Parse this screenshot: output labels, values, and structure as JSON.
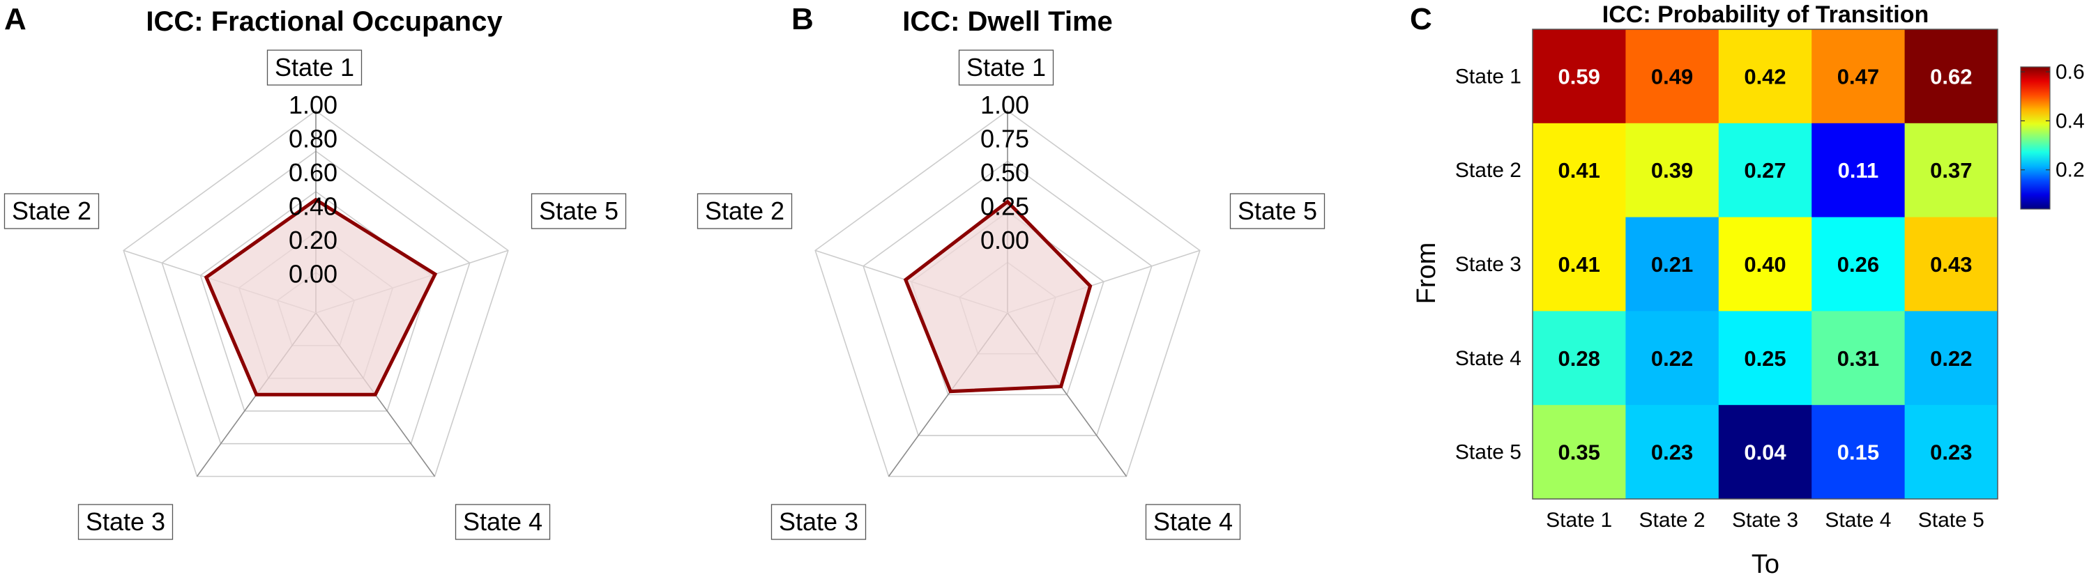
{
  "colors": {
    "polygon_stroke": "#8b0000",
    "polygon_fill": "#f0d8d8",
    "grid_light": "#cccccc",
    "grid_dark": "#8c8c8c",
    "colormap": "jet"
  },
  "chart_data": [
    {
      "type": "radar",
      "panel_letter": "A",
      "title": "ICC: Fractional Occupancy",
      "axes": [
        "State 1",
        "State 5",
        "State 4",
        "State 3",
        "State 2"
      ],
      "rlim": [
        0,
        1
      ],
      "tick_labels": [
        "1.00",
        "0.80",
        "0.60",
        "0.40",
        "0.20",
        "0.00"
      ],
      "values": [
        0.56,
        0.62,
        0.5,
        0.5,
        0.57
      ],
      "grid": true
    },
    {
      "type": "radar",
      "panel_letter": "B",
      "title": "ICC: Dwell Time",
      "axes": [
        "State 1",
        "State 5",
        "State 4",
        "State 3",
        "State 2"
      ],
      "rlim": [
        0,
        1
      ],
      "tick_labels": [
        "1.00",
        "0.75",
        "0.50",
        "0.25",
        "0.00"
      ],
      "values": [
        0.55,
        0.43,
        0.45,
        0.48,
        0.53
      ],
      "grid": true
    },
    {
      "type": "heatmap",
      "panel_letter": "C",
      "title": "ICC: Probability of Transition",
      "xlabel": "To",
      "ylabel": "From",
      "row_labels": [
        "State 1",
        "State 2",
        "State 3",
        "State 4",
        "State 5"
      ],
      "col_labels": [
        "State 1",
        "State 2",
        "State 3",
        "State 4",
        "State 5"
      ],
      "values": [
        [
          0.59,
          0.49,
          0.42,
          0.47,
          0.62
        ],
        [
          0.41,
          0.39,
          0.27,
          0.11,
          0.37
        ],
        [
          0.41,
          0.21,
          0.4,
          0.26,
          0.43
        ],
        [
          0.28,
          0.22,
          0.25,
          0.31,
          0.22
        ],
        [
          0.35,
          0.23,
          0.04,
          0.15,
          0.23
        ]
      ],
      "cell_labels": [
        [
          "0.59",
          "0.49",
          "0.42",
          "0.47",
          "0.62"
        ],
        [
          "0.41",
          "0.39",
          "0.27",
          "0.11",
          "0.37"
        ],
        [
          "0.41",
          "0.21",
          "0.40",
          "0.26",
          "0.43"
        ],
        [
          "0.28",
          "0.22",
          "0.25",
          "0.31",
          "0.22"
        ],
        [
          "0.35",
          "0.23",
          "0.04",
          "0.15",
          "0.23"
        ]
      ],
      "colorbar": {
        "clim": [
          0.04,
          0.62
        ],
        "ticks": [
          0.2,
          0.4,
          0.6
        ],
        "tick_labels": [
          "0.2",
          "0.4",
          "0.6"
        ]
      }
    }
  ]
}
